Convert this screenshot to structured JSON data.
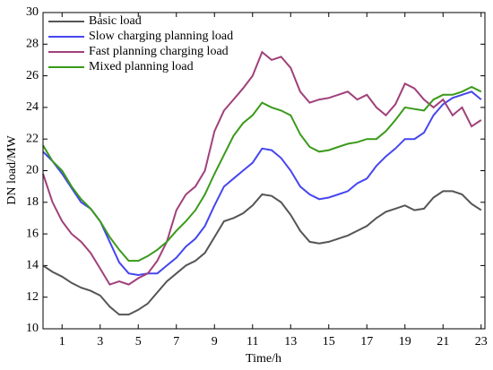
{
  "chart_data": {
    "type": "line",
    "xlabel": "Time/h",
    "ylabel": "DN load/MW",
    "x": [
      0,
      0.5,
      1,
      1.5,
      2,
      2.5,
      3,
      3.5,
      4,
      4.5,
      5,
      5.5,
      6,
      6.5,
      7,
      7.5,
      8,
      8.5,
      9,
      9.5,
      10,
      10.5,
      11,
      11.5,
      12,
      12.5,
      13,
      13.5,
      14,
      14.5,
      15,
      15.5,
      16,
      16.5,
      17,
      17.5,
      18,
      18.5,
      19,
      19.5,
      20,
      20.5,
      21,
      21.5,
      22,
      22.5,
      23
    ],
    "xlim": [
      0,
      23.2
    ],
    "xticks": [
      1,
      3,
      5,
      7,
      9,
      11,
      13,
      15,
      17,
      19,
      21,
      23
    ],
    "ylim": [
      10,
      30
    ],
    "yticks": [
      10,
      12,
      14,
      16,
      18,
      20,
      22,
      24,
      26,
      28,
      30
    ],
    "legend": "upper left",
    "series": [
      {
        "name": "Basic load",
        "color": "#555555",
        "values": [
          14.0,
          13.6,
          13.3,
          12.9,
          12.6,
          12.4,
          12.1,
          11.4,
          10.9,
          10.9,
          11.2,
          11.6,
          12.3,
          13.0,
          13.5,
          14.0,
          14.3,
          14.8,
          15.8,
          16.8,
          17.0,
          17.3,
          17.8,
          18.5,
          18.4,
          18.0,
          17.2,
          16.2,
          15.5,
          15.4,
          15.5,
          15.7,
          15.9,
          16.2,
          16.5,
          17.0,
          17.4,
          17.6,
          17.8,
          17.5,
          17.6,
          18.3,
          18.7,
          18.7,
          18.5,
          17.9,
          17.5
        ]
      },
      {
        "name": "Slow charging planning load",
        "color": "#4646f0",
        "values": [
          21.2,
          20.6,
          19.8,
          18.9,
          18.0,
          17.6,
          16.8,
          15.5,
          14.2,
          13.5,
          13.4,
          13.5,
          13.5,
          14.0,
          14.5,
          15.2,
          15.7,
          16.5,
          17.8,
          19.0,
          19.5,
          20.0,
          20.5,
          21.4,
          21.3,
          20.8,
          20.0,
          19.0,
          18.5,
          18.2,
          18.3,
          18.5,
          18.7,
          19.2,
          19.5,
          20.3,
          20.9,
          21.4,
          22.0,
          22.0,
          22.4,
          23.5,
          24.2,
          24.6,
          24.8,
          25.0,
          24.5
        ]
      },
      {
        "name": "Fast planning charging load",
        "color": "#a0407a",
        "values": [
          19.8,
          18.0,
          16.8,
          16.0,
          15.5,
          14.8,
          13.8,
          12.8,
          13.0,
          12.8,
          13.2,
          13.5,
          14.3,
          15.5,
          17.5,
          18.5,
          19.0,
          20.0,
          22.5,
          23.8,
          24.5,
          25.2,
          26.0,
          27.5,
          27.0,
          27.2,
          26.5,
          25.0,
          24.3,
          24.5,
          24.6,
          24.8,
          25.0,
          24.5,
          24.8,
          24.0,
          23.5,
          24.2,
          25.5,
          25.2,
          24.5,
          24.0,
          24.5,
          23.5,
          24.0,
          22.8,
          23.2
        ]
      },
      {
        "name": "Mixed planning load",
        "color": "#3a9a1a",
        "values": [
          21.6,
          20.6,
          20.0,
          19.0,
          18.2,
          17.6,
          16.8,
          15.8,
          15.0,
          14.3,
          14.3,
          14.6,
          15.0,
          15.5,
          16.2,
          16.8,
          17.5,
          18.5,
          19.8,
          21.0,
          22.2,
          23.0,
          23.5,
          24.3,
          24.0,
          23.8,
          23.5,
          22.3,
          21.5,
          21.2,
          21.3,
          21.5,
          21.7,
          21.8,
          22.0,
          22.0,
          22.5,
          23.2,
          24.0,
          23.9,
          23.8,
          24.5,
          24.8,
          24.8,
          25.0,
          25.3,
          25.0
        ]
      }
    ]
  }
}
